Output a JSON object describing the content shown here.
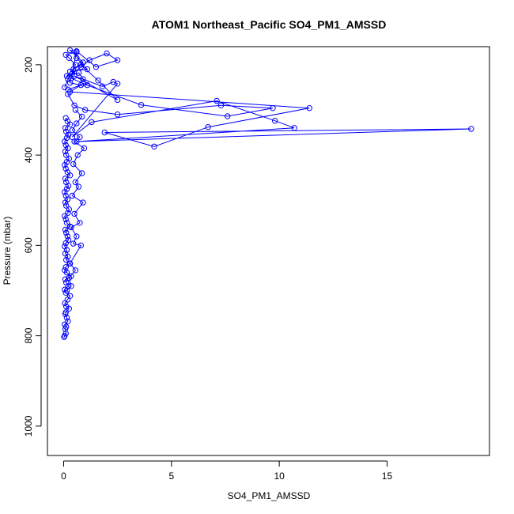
{
  "chart_data": {
    "type": "scatter",
    "title": "ATOM1 Northeast_Pacific SO4_PM1_AMSSD",
    "xlabel": "SO4_PM1_AMSSD",
    "ylabel": "Pressure (mbar)",
    "xlim": [
      -0.75,
      19.75
    ],
    "ylim": [
      1065,
      160
    ],
    "y_reversed": true,
    "xticks": [
      0,
      5,
      10,
      15
    ],
    "yticks": [
      200,
      400,
      600,
      800,
      1000
    ],
    "grid": false,
    "legend": "none",
    "colors": {
      "series": "#0000ff"
    },
    "marker": "open-circle",
    "connected": true,
    "series": [
      {
        "x": [
          0.02,
          0.05,
          0.1,
          0.08,
          0.12,
          0.05,
          0.2,
          0.15,
          0.08,
          0.1,
          0.25,
          0.12,
          0.06,
          0.18,
          0.3,
          0.1,
          0.05,
          0.22,
          0.12,
          0.08,
          0.35,
          0.15,
          0.05,
          0.1,
          0.28,
          0.12,
          0.2,
          0.08,
          0.15,
          0.05,
          0.1,
          0.22,
          0.18,
          0.12,
          0.08,
          0.3,
          0.15,
          0.1,
          0.05,
          0.2,
          0.25,
          0.12,
          0.08,
          0.18,
          0.1,
          0.05,
          0.15,
          0.22,
          0.12,
          0.08,
          0.3,
          0.18,
          0.1,
          0.05,
          0.15,
          0.25,
          0.12,
          0.08,
          0.2,
          0.1,
          0.05,
          0.15,
          0.22,
          0.12,
          0.08,
          0.3,
          0.18,
          0.1
        ],
        "y": [
          803,
          800,
          795,
          785,
          780,
          775,
          768,
          760,
          752,
          748,
          740,
          735,
          728,
          720,
          712,
          705,
          698,
          690,
          682,
          675,
          668,
          660,
          655,
          648,
          640,
          632,
          625,
          618,
          610,
          602,
          595,
          588,
          580,
          572,
          565,
          558,
          550,
          542,
          535,
          528,
          520,
          512,
          505,
          498,
          490,
          482,
          475,
          468,
          460,
          452,
          445,
          438,
          430,
          422,
          415,
          408,
          400,
          392,
          385,
          378,
          370,
          362,
          355,
          348,
          340,
          332,
          325,
          318
        ]
      },
      {
        "x": [
          0.15,
          0.35,
          0.25,
          0.55,
          0.3,
          0.8,
          0.45,
          0.6,
          0.35,
          0.75,
          0.5,
          0.9,
          0.4,
          0.7,
          0.55,
          0.85,
          0.45,
          0.65,
          0.95,
          0.5,
          0.75,
          0.4,
          0.6,
          0.85,
          0.55
        ],
        "y": [
          700,
          690,
          672,
          655,
          640,
          600,
          596,
          580,
          560,
          550,
          530,
          505,
          490,
          470,
          460,
          440,
          420,
          400,
          385,
          370,
          360,
          345,
          330,
          315,
          300
        ]
      },
      {
        "x": [
          0.2,
          0.5,
          1.0,
          2.5,
          7.3,
          9.7,
          7.6,
          3.6,
          0.9,
          0.3,
          11.4,
          6.7,
          4.2,
          1.9,
          18.9,
          0.6,
          10.7,
          9.8,
          7.1,
          1.3,
          0.4,
          2.5,
          2.3,
          1.8,
          0.9,
          0.5,
          2.5,
          1.6,
          0.8,
          0.3,
          1.1,
          0.6
        ],
        "y": [
          265,
          290,
          300,
          310,
          290,
          296,
          314,
          289,
          242,
          260,
          296,
          338,
          381,
          350,
          342,
          370,
          340,
          324,
          280,
          327,
          360,
          242,
          238,
          248,
          232,
          225,
          278,
          235,
          200,
          215,
          210,
          185
        ]
      },
      {
        "x": [
          0.05,
          0.2,
          0.4,
          0.8,
          1.2,
          2.0,
          2.5,
          1.5,
          0.6,
          0.3,
          0.9,
          0.45,
          0.15,
          0.7,
          1.1,
          0.35,
          0.55,
          0.25,
          0.1,
          0.6,
          0.3,
          0.8,
          0.2
        ],
        "y": [
          250,
          232,
          220,
          205,
          190,
          175,
          190,
          205,
          170,
          168,
          195,
          210,
          225,
          218,
          245,
          230,
          200,
          185,
          178,
          172,
          240,
          245,
          255
        ]
      }
    ]
  }
}
